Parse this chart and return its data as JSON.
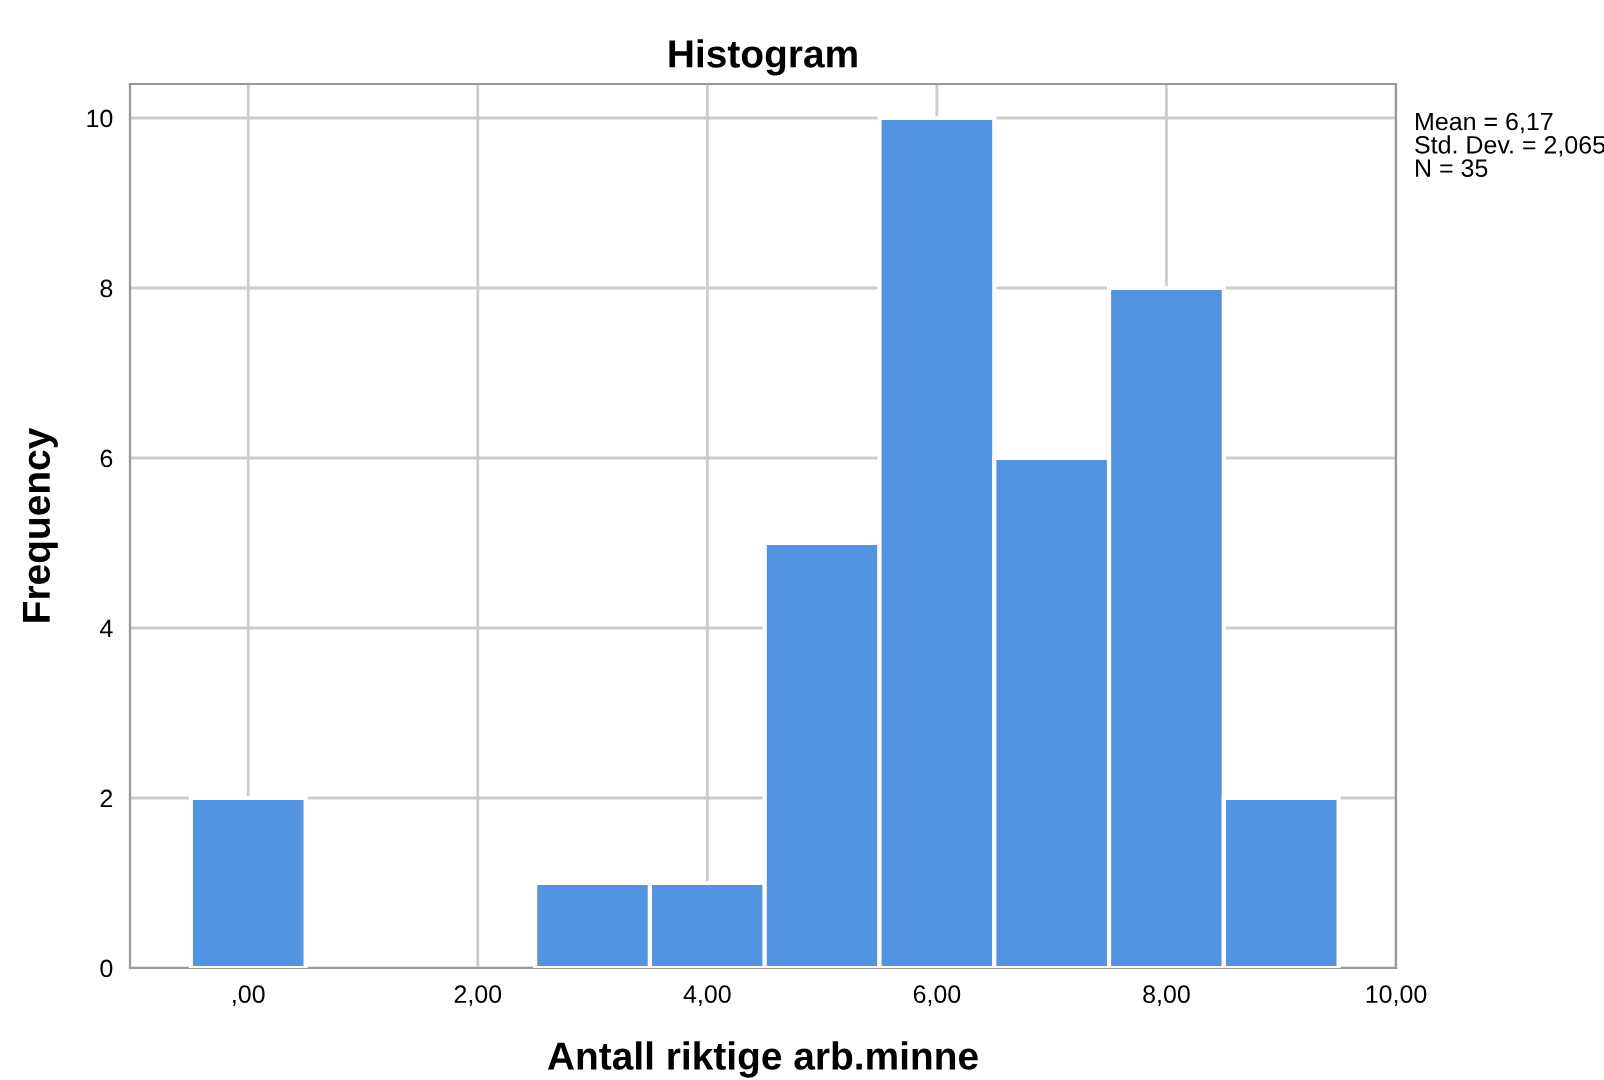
{
  "chart_data": {
    "type": "histogram",
    "title": "Histogram",
    "xlabel": "Antall riktige arb.minne",
    "ylabel": "Frequency",
    "bins": [
      -0.5,
      0.5,
      1.5,
      2.5,
      3.5,
      4.5,
      5.5,
      6.5,
      7.5,
      8.5,
      9.5
    ],
    "values": [
      2,
      0,
      0,
      1,
      1,
      5,
      10,
      6,
      8,
      2
    ],
    "color": "#5294e2",
    "xlim": [
      -1.03,
      10
    ],
    "ylim": [
      0,
      10.4
    ],
    "xticks": [
      {
        "value": 0,
        "label": ",00"
      },
      {
        "value": 2,
        "label": "2,00"
      },
      {
        "value": 4,
        "label": "4,00"
      },
      {
        "value": 6,
        "label": "6,00"
      },
      {
        "value": 8,
        "label": "8,00"
      },
      {
        "value": 10,
        "label": "10,00"
      }
    ],
    "yticks": [
      0,
      2,
      4,
      6,
      8,
      10
    ],
    "grid": true,
    "annotations": [
      "Mean = 6,17\nStd. Dev. = 2,065\nN = 35"
    ]
  }
}
